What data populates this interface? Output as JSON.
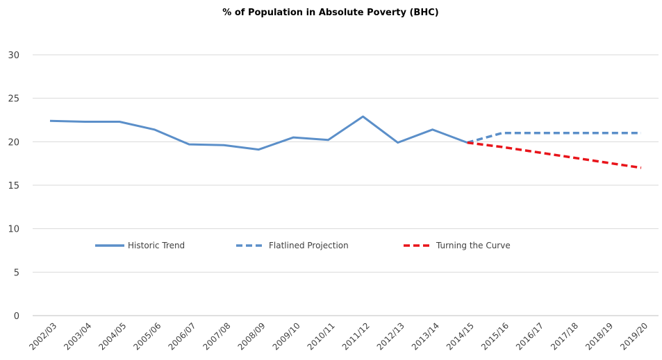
{
  "chart_data": {
    "type": "line",
    "title": "% of Population in Absolute Poverty (BHC)",
    "xlabel": "",
    "ylabel": "",
    "ylim": [
      0,
      30
    ],
    "yticks": [
      0,
      5,
      10,
      15,
      20,
      25,
      30
    ],
    "grid": true,
    "legend_position": "center",
    "categories": [
      "2002/03",
      "2003/04",
      "2004/05",
      "2005/06",
      "2006/07",
      "2007/08",
      "2008/09",
      "2009/10",
      "2010/11",
      "2011/12",
      "2012/13",
      "2013/14",
      "2014/15",
      "2015/16",
      "2016/17",
      "2017/18",
      "2018/19",
      "2019/20"
    ],
    "series": [
      {
        "name": "Historic Trend",
        "color": "#5b8fc9",
        "style": "solid",
        "values": [
          22.4,
          22.3,
          22.3,
          21.4,
          19.7,
          19.6,
          19.1,
          20.5,
          20.2,
          22.9,
          19.9,
          21.4,
          19.9,
          null,
          null,
          null,
          null,
          null
        ]
      },
      {
        "name": "Flatlined Projection",
        "color": "#5b8fc9",
        "style": "dashed",
        "values": [
          null,
          null,
          null,
          null,
          null,
          null,
          null,
          null,
          null,
          null,
          null,
          null,
          19.9,
          21.0,
          21.0,
          21.0,
          21.0,
          21.0
        ]
      },
      {
        "name": "Turning the Curve",
        "color": "#e8141a",
        "style": "dashed",
        "values": [
          null,
          null,
          null,
          null,
          null,
          null,
          null,
          null,
          null,
          null,
          null,
          null,
          19.9,
          19.4,
          18.8,
          18.2,
          17.6,
          17.0
        ]
      }
    ]
  }
}
